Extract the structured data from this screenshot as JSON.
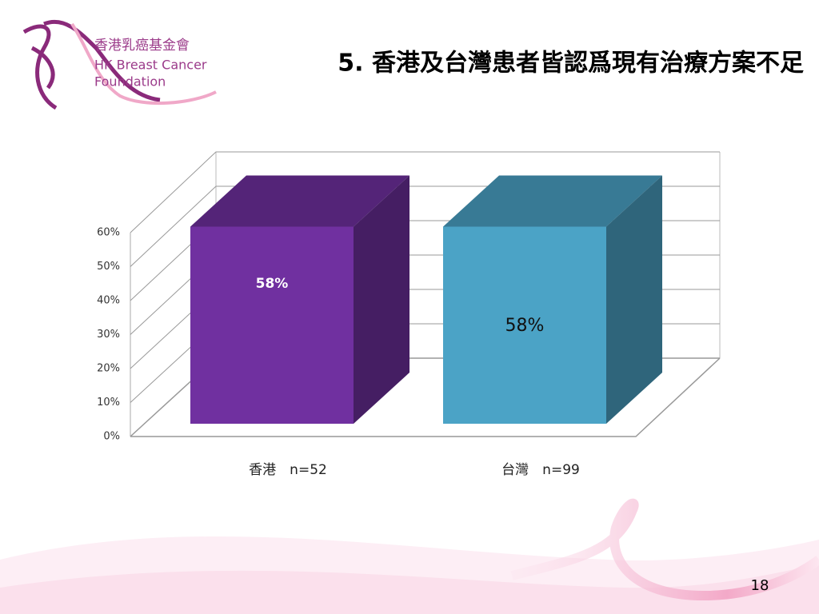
{
  "logo": {
    "name_zh": "香港乳癌基金會",
    "name_en_1": "HK Breast Cancer",
    "name_en_2": "Foundation"
  },
  "chart_data": {
    "type": "bar3d",
    "title": "5. 香港及台灣患者皆認爲現有治療方案不足",
    "categories": [
      "香港　n=52",
      "台灣　n=99"
    ],
    "values": [
      58,
      58
    ],
    "value_labels": [
      "58%",
      "58%"
    ],
    "colors": [
      "#7030a0",
      "#4ba3c6"
    ],
    "ylim": [
      0,
      60
    ],
    "yticks": [
      {
        "value": 0,
        "label": "0%"
      },
      {
        "value": 10,
        "label": "10%"
      },
      {
        "value": 20,
        "label": "20%"
      },
      {
        "value": 30,
        "label": "30%"
      },
      {
        "value": 40,
        "label": "40%"
      },
      {
        "value": 50,
        "label": "50%"
      },
      {
        "value": 60,
        "label": "60%"
      }
    ],
    "grid": true
  },
  "page_number": "18"
}
